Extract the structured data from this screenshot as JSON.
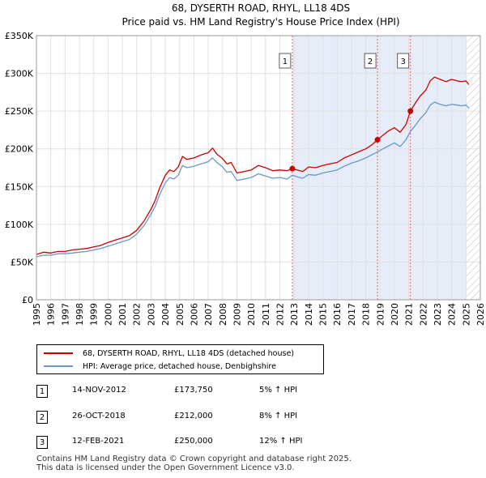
{
  "chart_data": {
    "type": "line",
    "title": "68, DYSERTH ROAD, RHYL, LL18 4DS",
    "subtitle": "Price paid vs. HM Land Registry's House Price Index (HPI)",
    "xlabel": "",
    "ylabel": "",
    "xlim": [
      1995,
      2026
    ],
    "ylim": [
      0,
      350000
    ],
    "y_ticks": [
      0,
      50000,
      100000,
      150000,
      200000,
      250000,
      300000,
      350000
    ],
    "y_tick_labels": [
      "£0",
      "£50K",
      "£100K",
      "£150K",
      "£200K",
      "£250K",
      "£300K",
      "£350K"
    ],
    "x_ticks": [
      1995,
      1996,
      1997,
      1998,
      1999,
      2000,
      2001,
      2002,
      2003,
      2004,
      2005,
      2006,
      2007,
      2008,
      2009,
      2010,
      2011,
      2012,
      2013,
      2014,
      2015,
      2016,
      2017,
      2018,
      2019,
      2020,
      2021,
      2022,
      2023,
      2024,
      2025,
      2026
    ],
    "x_tick_labels": [
      "1995",
      "1996",
      "1997",
      "1998",
      "1999",
      "2000",
      "2001",
      "2002",
      "2003",
      "2004",
      "2005",
      "2006",
      "2007",
      "2008",
      "2009",
      "2010",
      "2011",
      "2012",
      "2013",
      "2014",
      "2015",
      "2016",
      "2017",
      "2018",
      "2019",
      "2020",
      "2021",
      "2022",
      "2023",
      "2024",
      "2025",
      "2026"
    ],
    "grid": true,
    "shaded_region": [
      2012.87,
      2025.0
    ],
    "hatch_from": 2025.0,
    "series": [
      {
        "name": "68, DYSERTH ROAD, RHYL, LL18 4DS (detached house)",
        "color": "#cc0000",
        "x": [
          1995.0,
          1995.5,
          1996.0,
          1996.5,
          1997.0,
          1997.5,
          1998.0,
          1998.5,
          1999.0,
          1999.5,
          2000.0,
          2000.5,
          2001.0,
          2001.5,
          2002.0,
          2002.5,
          2003.0,
          2003.3,
          2003.6,
          2004.0,
          2004.3,
          2004.6,
          2004.9,
          2005.2,
          2005.5,
          2006.0,
          2006.5,
          2007.0,
          2007.3,
          2007.6,
          2008.0,
          2008.3,
          2008.6,
          2009.0,
          2009.5,
          2010.0,
          2010.5,
          2011.0,
          2011.5,
          2012.0,
          2012.5,
          2012.87,
          2013.2,
          2013.6,
          2014.0,
          2014.5,
          2015.0,
          2015.5,
          2016.0,
          2016.5,
          2017.0,
          2017.5,
          2018.0,
          2018.4,
          2018.82,
          2019.2,
          2019.6,
          2020.0,
          2020.4,
          2020.8,
          2021.12,
          2021.5,
          2021.8,
          2022.2,
          2022.5,
          2022.8,
          2023.2,
          2023.6,
          2024.0,
          2024.4,
          2024.7,
          2025.0,
          2025.2
        ],
        "y": [
          60000,
          63000,
          62000,
          64000,
          64000,
          66000,
          67000,
          68000,
          70000,
          72000,
          76000,
          79000,
          82000,
          85000,
          92000,
          104000,
          120000,
          132000,
          148000,
          165000,
          172000,
          170000,
          176000,
          190000,
          186000,
          188000,
          192000,
          195000,
          201000,
          193000,
          187000,
          180000,
          182000,
          168000,
          170000,
          172000,
          178000,
          175000,
          171000,
          172000,
          171000,
          173750,
          172000,
          170000,
          176000,
          175000,
          178000,
          180000,
          182000,
          188000,
          192000,
          196000,
          200000,
          205000,
          212000,
          218000,
          224000,
          228000,
          222000,
          232000,
          250000,
          262000,
          270000,
          278000,
          290000,
          295000,
          292000,
          289000,
          292000,
          290000,
          289000,
          290000,
          285000
        ]
      },
      {
        "name": "HPI: Average price, detached house, Denbighshire",
        "color": "#6699cc",
        "x": [
          1995.0,
          1995.5,
          1996.0,
          1996.5,
          1997.0,
          1997.5,
          1998.0,
          1998.5,
          1999.0,
          1999.5,
          2000.0,
          2000.5,
          2001.0,
          2001.5,
          2002.0,
          2002.5,
          2003.0,
          2003.3,
          2003.6,
          2004.0,
          2004.3,
          2004.6,
          2004.9,
          2005.2,
          2005.5,
          2006.0,
          2006.5,
          2007.0,
          2007.3,
          2007.6,
          2008.0,
          2008.3,
          2008.6,
          2009.0,
          2009.5,
          2010.0,
          2010.5,
          2011.0,
          2011.5,
          2012.0,
          2012.5,
          2012.87,
          2013.2,
          2013.6,
          2014.0,
          2014.5,
          2015.0,
          2015.5,
          2016.0,
          2016.5,
          2017.0,
          2017.5,
          2018.0,
          2018.4,
          2018.82,
          2019.2,
          2019.6,
          2020.0,
          2020.4,
          2020.8,
          2021.12,
          2021.5,
          2021.8,
          2022.2,
          2022.5,
          2022.8,
          2023.2,
          2023.6,
          2024.0,
          2024.4,
          2024.7,
          2025.0,
          2025.2
        ],
        "y": [
          57000,
          59000,
          59000,
          61000,
          61000,
          62000,
          63000,
          64000,
          66000,
          68000,
          71000,
          74000,
          77000,
          80000,
          87000,
          98000,
          113000,
          124000,
          139000,
          155000,
          162000,
          160000,
          165000,
          178000,
          175000,
          177000,
          180000,
          183000,
          188000,
          182000,
          176000,
          169000,
          170000,
          158000,
          160000,
          162000,
          167000,
          164000,
          161000,
          162000,
          160000,
          165000,
          163000,
          161000,
          166000,
          165000,
          168000,
          170000,
          172000,
          177000,
          181000,
          184000,
          188000,
          192000,
          196000,
          200000,
          204000,
          208000,
          203000,
          212000,
          223000,
          232000,
          240000,
          248000,
          258000,
          262000,
          259000,
          257000,
          259000,
          258000,
          257000,
          258000,
          254000
        ]
      }
    ],
    "sales": [
      {
        "label": "1",
        "x": 2012.87,
        "y": 173750
      },
      {
        "label": "2",
        "x": 2018.82,
        "y": 212000
      },
      {
        "label": "3",
        "x": 2021.12,
        "y": 250000
      }
    ]
  },
  "legend": {
    "property": "68, DYSERTH ROAD, RHYL, LL18 4DS (detached house)",
    "hpi": "HPI: Average price, detached house, Denbighshire"
  },
  "transactions": [
    {
      "num": "1",
      "date": "14-NOV-2012",
      "price": "£173,750",
      "hpi": "5% ↑ HPI"
    },
    {
      "num": "2",
      "date": "26-OCT-2018",
      "price": "£212,000",
      "hpi": "8% ↑ HPI"
    },
    {
      "num": "3",
      "date": "12-FEB-2021",
      "price": "£250,000",
      "hpi": "12% ↑ HPI"
    }
  ],
  "footer": {
    "line1": "Contains HM Land Registry data © Crown copyright and database right 2025.",
    "line2": "This data is licensed under the Open Government Licence v3.0."
  }
}
